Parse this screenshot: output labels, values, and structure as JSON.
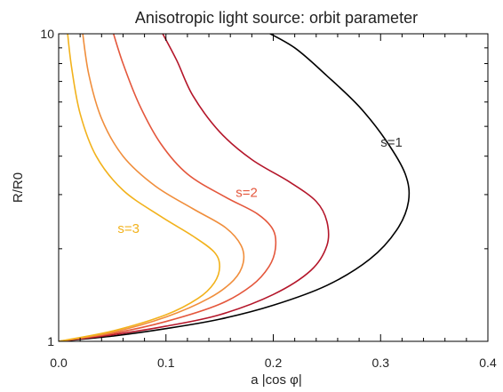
{
  "chart_data": {
    "type": "line",
    "title": "Anisotropic light source: orbit parameter",
    "xlabel": "a |cos φ|",
    "ylabel": "R/R0",
    "x_scale": "linear",
    "y_scale": "log",
    "xlim": [
      0.0,
      0.4
    ],
    "ylim": [
      1,
      10
    ],
    "x_ticks": [
      {
        "value": 0.0,
        "label": "0.0"
      },
      {
        "value": 0.1,
        "label": "0.1"
      },
      {
        "value": 0.2,
        "label": "0.2"
      },
      {
        "value": 0.3,
        "label": "0.3"
      },
      {
        "value": 0.4,
        "label": "0.4"
      }
    ],
    "y_ticks": [
      {
        "value": 1,
        "label": "1"
      },
      {
        "value": 10,
        "label": "10"
      }
    ],
    "grid": false,
    "legend": "none",
    "series": [
      {
        "name": "s=1",
        "color": "#000000",
        "x": [
          0.0,
          0.05,
          0.1,
          0.15,
          0.2,
          0.25,
          0.29,
          0.315,
          0.326,
          0.323,
          0.305,
          0.28,
          0.25,
          0.22,
          0.19
        ],
        "y": [
          1.0,
          1.04,
          1.1,
          1.18,
          1.31,
          1.52,
          1.85,
          2.3,
          2.85,
          3.5,
          4.5,
          5.8,
          7.3,
          9.0,
          10.3
        ]
      },
      {
        "name": "",
        "color": "#b4162a",
        "x": [
          0.0,
          0.05,
          0.1,
          0.15,
          0.2,
          0.235,
          0.25,
          0.25,
          0.24,
          0.215,
          0.18,
          0.15,
          0.125,
          0.11,
          0.095
        ],
        "y": [
          1.0,
          1.05,
          1.12,
          1.22,
          1.42,
          1.7,
          2.05,
          2.45,
          2.85,
          3.3,
          3.9,
          4.8,
          6.3,
          8.2,
          10.3
        ]
      },
      {
        "name": "s=2",
        "color": "#e4573c",
        "x": [
          0.0,
          0.05,
          0.1,
          0.15,
          0.18,
          0.196,
          0.202,
          0.2,
          0.185,
          0.155,
          0.12,
          0.095,
          0.075,
          0.06,
          0.05
        ],
        "y": [
          1.0,
          1.06,
          1.16,
          1.32,
          1.52,
          1.75,
          2.0,
          2.3,
          2.6,
          2.95,
          3.5,
          4.4,
          5.9,
          8.0,
          10.3
        ]
      },
      {
        "name": "",
        "color": "#f08e3c",
        "x": [
          0.0,
          0.05,
          0.1,
          0.14,
          0.163,
          0.172,
          0.17,
          0.155,
          0.125,
          0.09,
          0.06,
          0.04,
          0.028,
          0.022
        ],
        "y": [
          1.0,
          1.07,
          1.2,
          1.38,
          1.58,
          1.8,
          2.05,
          2.35,
          2.7,
          3.2,
          4.0,
          5.3,
          7.4,
          10.3
        ]
      },
      {
        "name": "s=3",
        "color": "#f2b21c",
        "x": [
          0.0,
          0.05,
          0.1,
          0.13,
          0.145,
          0.15,
          0.145,
          0.125,
          0.095,
          0.06,
          0.035,
          0.02,
          0.012,
          0.008
        ],
        "y": [
          1.0,
          1.08,
          1.22,
          1.38,
          1.55,
          1.75,
          1.95,
          2.2,
          2.55,
          3.1,
          4.0,
          5.5,
          7.8,
          10.3
        ]
      }
    ],
    "annotations": [
      {
        "text": "s=1",
        "x": 0.3,
        "y": 4.3,
        "color": "#333333"
      },
      {
        "text": "s=2",
        "x": 0.165,
        "y": 2.95,
        "color": "#e4573c"
      },
      {
        "text": "s=3",
        "x": 0.055,
        "y": 2.25,
        "color": "#f2b21c"
      }
    ]
  }
}
